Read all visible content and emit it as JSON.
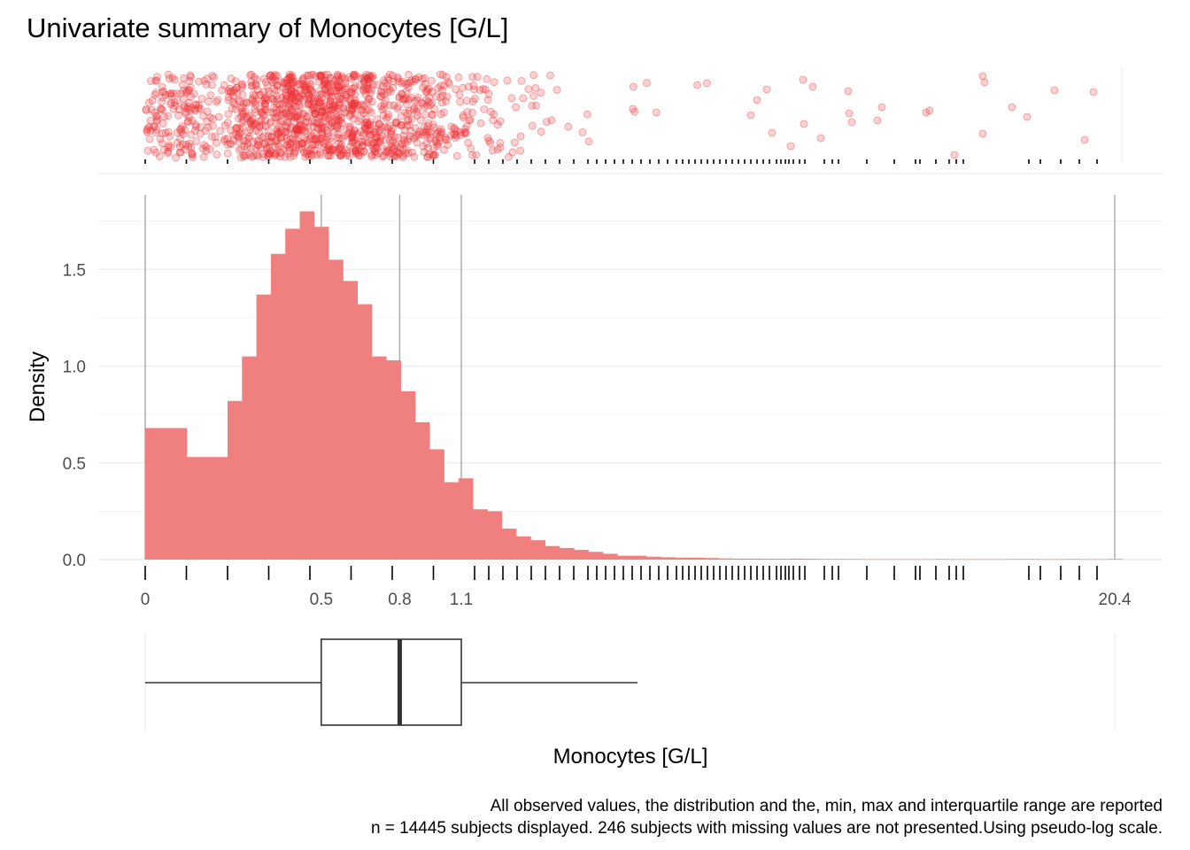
{
  "chart_data": {
    "type": "histogram",
    "title": "Univariate summary of Monocytes [G/L]",
    "xlabel": "Monocytes [G/L]",
    "ylabel": "Density",
    "x_scale": "pseudo-log",
    "x_ticks": [
      {
        "value": 0,
        "label": "0"
      },
      {
        "value": 0.5,
        "label": "0.5"
      },
      {
        "value": 0.8,
        "label": "0.8"
      },
      {
        "value": 1.1,
        "label": "1.1"
      },
      {
        "value": 20.4,
        "label": "20.4"
      }
    ],
    "y_ticks": [
      {
        "value": 0,
        "label": "0.0"
      },
      {
        "value": 0.5,
        "label": "0.5"
      },
      {
        "value": 1.0,
        "label": "1.0"
      },
      {
        "value": 1.5,
        "label": "1.5"
      }
    ],
    "ylim": [
      0,
      1.9
    ],
    "grid": true,
    "bar_color": "#f07f7f",
    "point_color": "#ef2f33",
    "histogram_density": [
      0.68,
      0.53,
      0.82,
      1.05,
      1.37,
      1.58,
      1.71,
      1.8,
      1.72,
      1.55,
      1.44,
      1.32,
      1.05,
      1.03,
      0.87,
      0.71,
      0.57,
      0.4,
      0.42,
      0.26,
      0.25,
      0.16,
      0.12,
      0.1,
      0.07,
      0.06,
      0.05,
      0.04,
      0.03,
      0.02,
      0.02,
      0.015,
      0.012,
      0.01,
      0.01,
      0.008,
      0.006,
      0.005,
      0.005,
      0.004,
      0.004,
      0.005,
      0.004,
      0.003,
      0.003,
      0.003,
      0.002,
      0.002,
      0.002,
      0.002,
      0.002,
      0.003,
      0.002,
      0.002,
      0.002,
      0.002,
      0.003,
      0.003,
      0.002,
      0.002,
      0.003,
      0.002,
      0.002,
      0.003
    ],
    "summary": {
      "min": 0,
      "q1": 0.5,
      "median": 0.8,
      "q3": 1.1,
      "max": 20.4,
      "whisker_upper": 2.5
    },
    "n_displayed": 14445,
    "n_missing": 246,
    "caption_lines": [
      "All observed values, the distribution and the, min, max and interquartile range are reported",
      "n = 14445 subjects displayed. 246 subjects with missing values are not presented.Using pseudo-log scale."
    ]
  }
}
